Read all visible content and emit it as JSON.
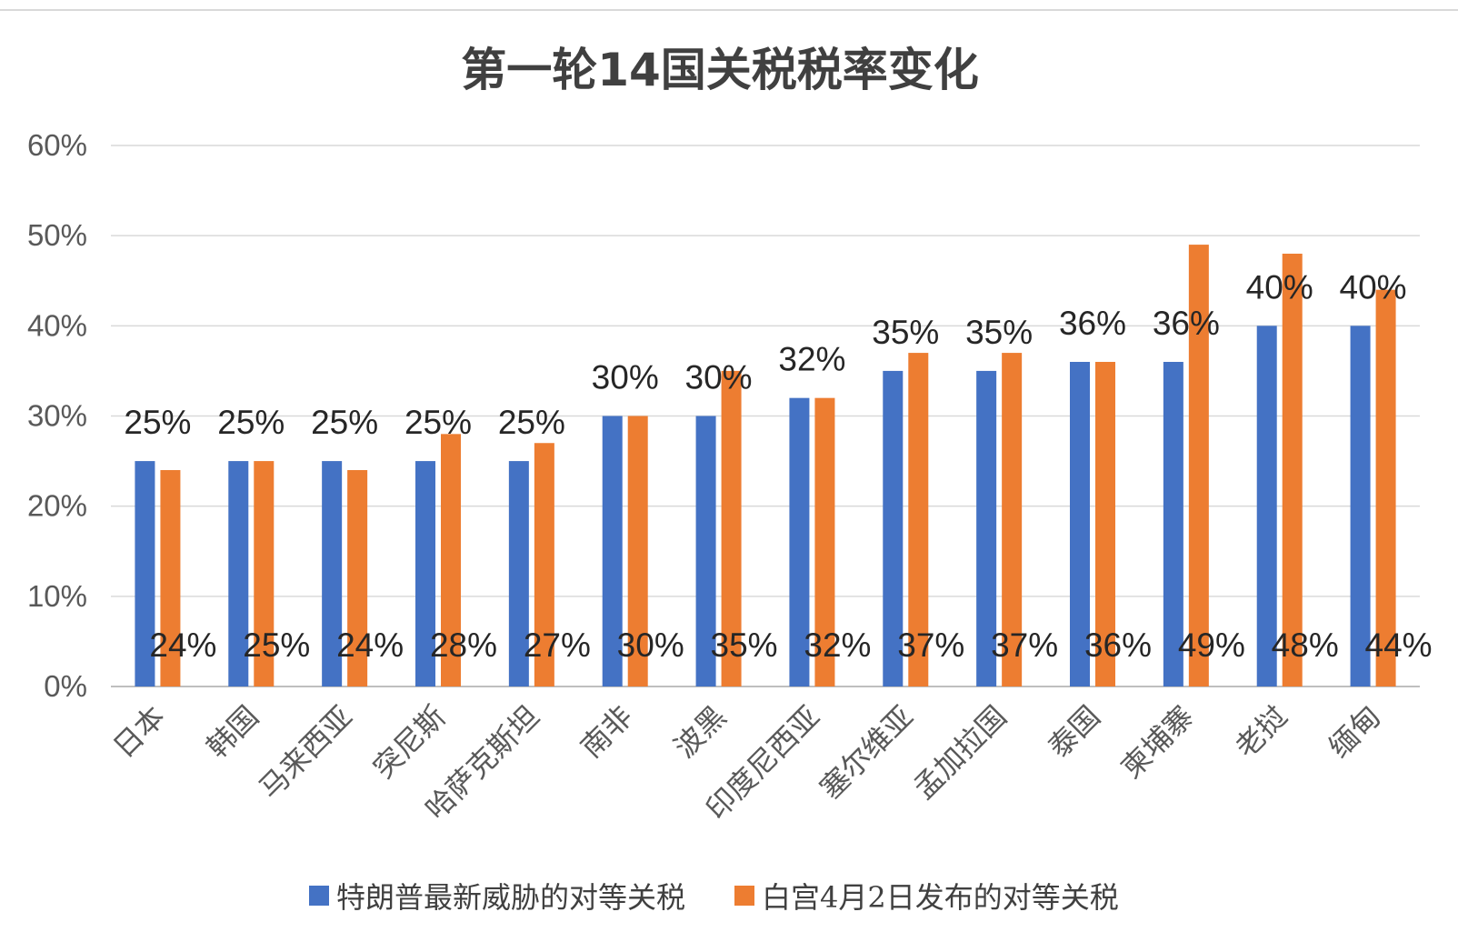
{
  "chart_data": {
    "type": "bar",
    "title": "第一轮14国关税税率变化",
    "categories": [
      "日本",
      "韩国",
      "马来西亚",
      "突尼斯",
      "哈萨克斯坦",
      "南非",
      "波黑",
      "印度尼西亚",
      "塞尔维亚",
      "孟加拉国",
      "泰国",
      "柬埔寨",
      "老挝",
      "缅甸"
    ],
    "series": [
      {
        "name": "特朗普最新威胁的对等关税",
        "color": "#4472C4",
        "values": [
          25,
          25,
          25,
          25,
          25,
          30,
          30,
          32,
          35,
          35,
          36,
          36,
          40,
          40
        ]
      },
      {
        "name": "白宫4月2日发布的对等关税",
        "color": "#ED7D31",
        "values": [
          24,
          25,
          24,
          28,
          27,
          30,
          35,
          32,
          37,
          37,
          36,
          49,
          48,
          44
        ]
      }
    ],
    "ylim": [
      0,
      60
    ],
    "yticks": [
      "0%",
      "10%",
      "20%",
      "30%",
      "40%",
      "50%",
      "60%"
    ],
    "value_suffix": "%",
    "grid": true,
    "legend": "bottom"
  }
}
